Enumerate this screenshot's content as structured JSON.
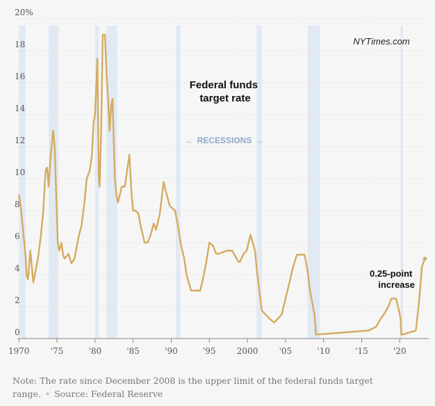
{
  "chart_data": {
    "type": "line",
    "title": "Federal funds target rate",
    "title_lines": [
      "Federal funds",
      "target rate"
    ],
    "watermark": "NYTimes.com",
    "recession_label": "RECESSIONS",
    "recession_arrow_left": "←",
    "recession_arrow_right": "→",
    "annotation_lines": [
      "0.25-point",
      "increase"
    ],
    "xlim": [
      1969.8,
      2023.8
    ],
    "ylim": [
      0,
      20
    ],
    "y_ticks": [
      0,
      2,
      4,
      6,
      8,
      10,
      12,
      14,
      16,
      18,
      20
    ],
    "y_tick_labels": [
      "0",
      "2",
      "4",
      "6",
      "8",
      "10",
      "12",
      "14",
      "16",
      "18",
      "20%"
    ],
    "x_ticks": [
      1970,
      1975,
      1980,
      1985,
      1990,
      1995,
      2000,
      2005,
      2010,
      2015,
      2020
    ],
    "x_tick_labels": [
      "1970",
      "'75",
      "'80",
      "'85",
      "'90",
      "'95",
      "2000",
      "'05",
      "'10",
      "'15",
      "'20"
    ],
    "recessions": [
      [
        1970.0,
        1970.9
      ],
      [
        1973.9,
        1975.2
      ],
      [
        1980.0,
        1980.5
      ],
      [
        1981.5,
        1982.9
      ],
      [
        1990.6,
        1991.2
      ],
      [
        2001.2,
        2001.9
      ],
      [
        2007.9,
        2009.5
      ],
      [
        2020.1,
        2020.4
      ]
    ],
    "line_color": "#d4ab5f",
    "recession_color": "#e1e9f3",
    "series": [
      {
        "name": "Federal funds target rate",
        "x": [
          1970.0,
          1970.3,
          1970.5,
          1970.9,
          1971.0,
          1971.2,
          1971.5,
          1971.7,
          1971.9,
          1972.1,
          1972.5,
          1972.9,
          1973.2,
          1973.5,
          1973.7,
          1973.9,
          1974.2,
          1974.5,
          1974.7,
          1974.9,
          1975.1,
          1975.3,
          1975.6,
          1975.8,
          1976.0,
          1976.5,
          1976.9,
          1977.3,
          1977.7,
          1977.9,
          1978.2,
          1978.6,
          1978.9,
          1979.3,
          1979.6,
          1979.8,
          1980.0,
          1980.3,
          1980.5,
          1980.6,
          1980.8,
          1981.0,
          1981.3,
          1981.5,
          1981.7,
          1981.9,
          1982.1,
          1982.3,
          1982.6,
          1982.8,
          1983.0,
          1983.5,
          1983.9,
          1984.2,
          1984.5,
          1984.8,
          1985.0,
          1985.3,
          1985.7,
          1986.0,
          1986.5,
          1986.9,
          1987.3,
          1987.7,
          1988.0,
          1988.5,
          1989.0,
          1989.4,
          1989.8,
          1990.5,
          1990.9,
          1991.3,
          1991.7,
          1992.0,
          1992.6,
          1993.0,
          1993.8,
          1994.2,
          1994.6,
          1995.0,
          1995.5,
          1995.9,
          1996.2,
          1997.3,
          1998.0,
          1998.8,
          1999.0,
          1999.5,
          1999.9,
          2000.4,
          2001.0,
          2001.3,
          2001.7,
          2001.9,
          2002.9,
          2003.5,
          2004.5,
          2005.0,
          2005.5,
          2006.0,
          2006.5,
          2007.5,
          2007.7,
          2007.9,
          2008.2,
          2008.8,
          2009.0,
          2015.9,
          2016.9,
          2017.5,
          2017.9,
          2018.5,
          2018.9,
          2019.5,
          2019.9,
          2020.1,
          2020.2,
          2020.3,
          2022.1,
          2022.4,
          2022.7,
          2022.9,
          2023.1,
          2023.3
        ],
        "values": [
          9.0,
          8.0,
          7.0,
          5.0,
          4.0,
          3.7,
          5.5,
          4.5,
          3.5,
          4.0,
          5.0,
          6.5,
          8.0,
          10.5,
          10.7,
          9.5,
          11.5,
          13.0,
          12.0,
          9.0,
          6.0,
          5.5,
          6.0,
          5.2,
          5.0,
          5.3,
          4.7,
          5.0,
          6.0,
          6.5,
          7.0,
          8.5,
          10.0,
          10.5,
          11.5,
          13.5,
          14.0,
          17.5,
          10.0,
          9.5,
          13.0,
          19.0,
          19.0,
          16.5,
          15.0,
          13.0,
          14.5,
          15.0,
          10.0,
          9.0,
          8.5,
          9.5,
          9.5,
          10.5,
          11.5,
          9.0,
          8.0,
          8.0,
          7.8,
          7.0,
          6.0,
          6.0,
          6.5,
          7.2,
          6.8,
          7.8,
          9.8,
          9.0,
          8.3,
          8.0,
          7.0,
          5.8,
          5.0,
          4.0,
          3.0,
          3.0,
          3.0,
          3.8,
          4.8,
          6.0,
          5.8,
          5.3,
          5.3,
          5.5,
          5.5,
          4.8,
          4.8,
          5.3,
          5.5,
          6.5,
          5.5,
          4.0,
          2.5,
          1.75,
          1.25,
          1.0,
          1.5,
          2.5,
          3.5,
          4.5,
          5.25,
          5.25,
          4.75,
          4.25,
          3.0,
          1.5,
          0.25,
          0.5,
          0.75,
          1.25,
          1.5,
          2.0,
          2.5,
          2.5,
          1.75,
          1.25,
          0.25,
          0.25,
          0.5,
          1.75,
          3.25,
          4.5,
          4.75,
          5.0
        ]
      }
    ]
  },
  "footnote": {
    "note": "Note: The rate since December 2008 is the upper limit of the federal funds target range.",
    "separator": "•",
    "source": "Source: Federal Reserve"
  }
}
